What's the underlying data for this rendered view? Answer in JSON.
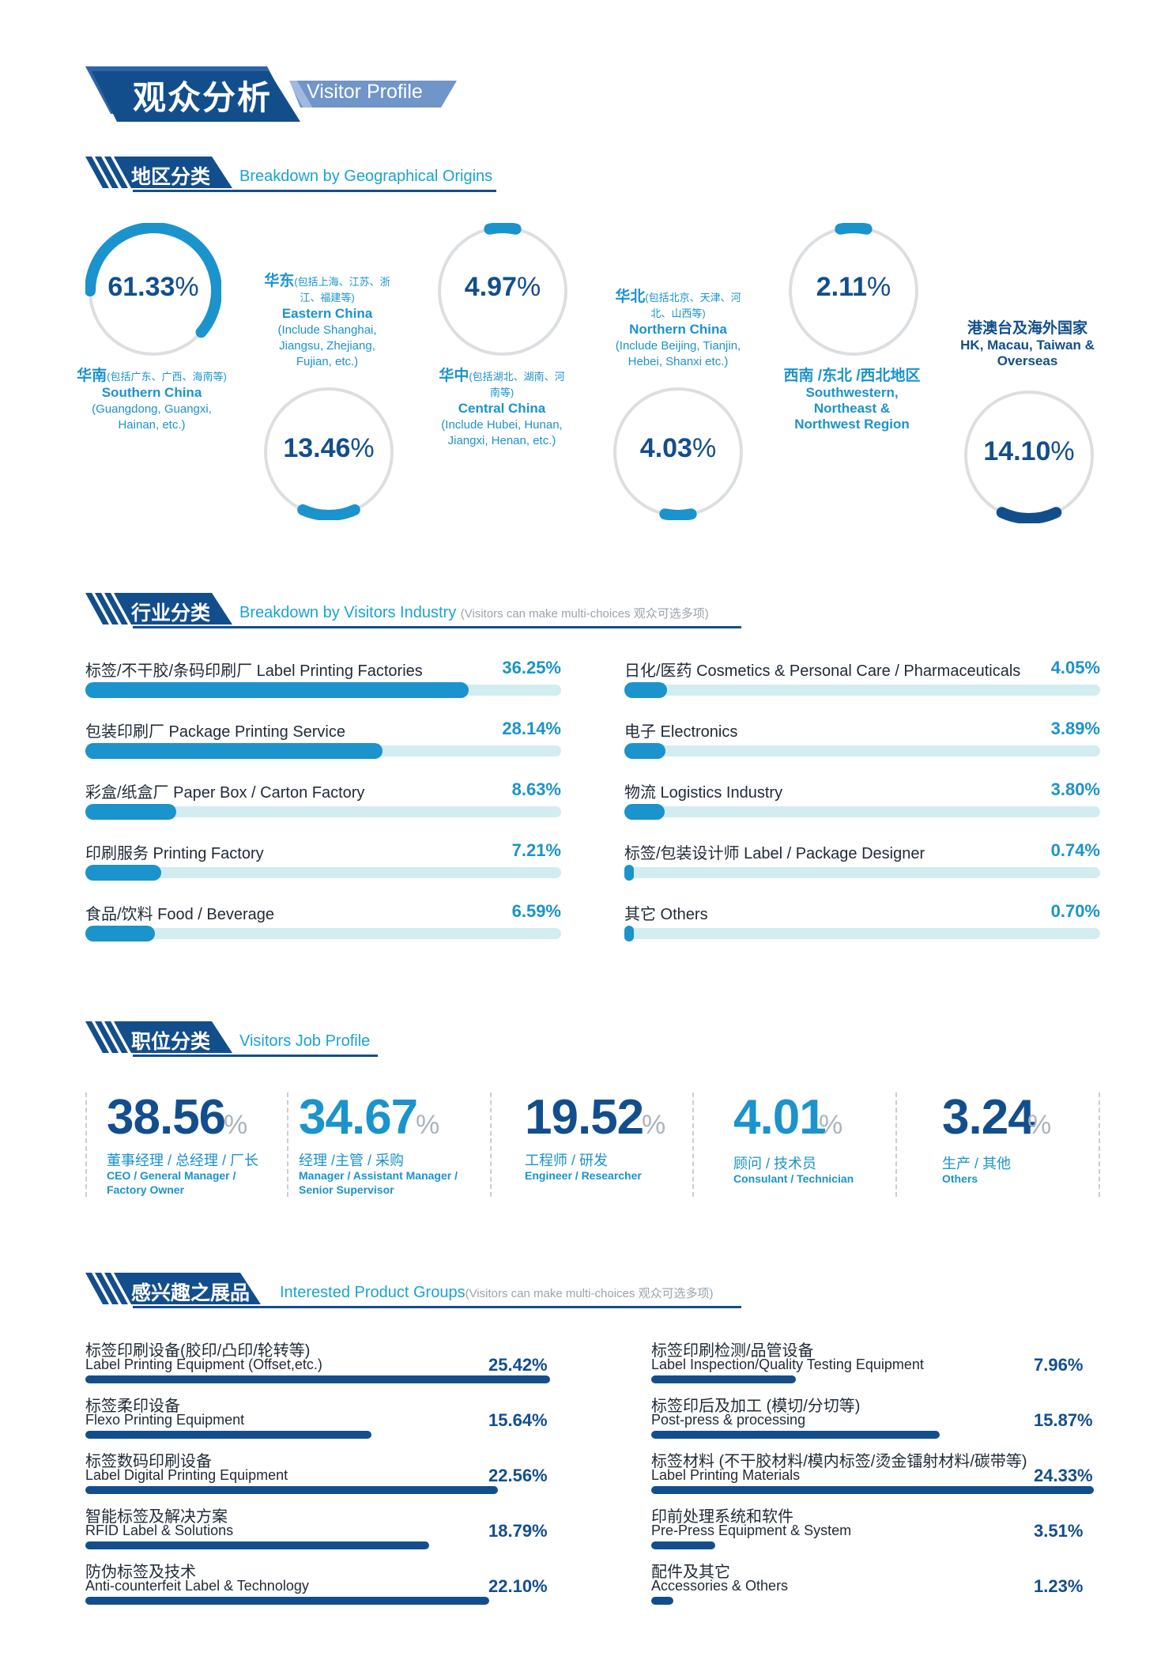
{
  "colors": {
    "navy": "#134e8c",
    "blue": "#1b93cc",
    "track": "#d3ecef",
    "ring": "#dcdfe2"
  },
  "header": {
    "title_zh": "观众分析",
    "title_en": "Visitor Profile"
  },
  "sections": {
    "geo": {
      "zh": "地区分类",
      "en": "Breakdown by Geographical Origins"
    },
    "industry": {
      "zh": "行业分类",
      "en": "Breakdown by Visitors Industry",
      "note": "(Visitors can make multi-choices 观众可选多项)"
    },
    "job": {
      "zh": "职位分类",
      "en": "Visitors Job Profile"
    },
    "product": {
      "zh": "感兴趣之展品",
      "en": "Interested Product Groups",
      "note": "(Visitors can make multi-choices 观众可选多项)"
    }
  },
  "chart_data": [
    {
      "type": "pie",
      "regions": [
        {
          "zh": "华南",
          "zh_note": "(包括广东、广西、海南等)",
          "en": "Southern China",
          "en_note": "(Guangdong, Guangxi, Hainan, etc.)",
          "value": 61.33,
          "value_label": "61.33"
        },
        {
          "zh": "华东",
          "zh_note": "(包括上海、江苏、浙江、福建等)",
          "en": "Eastern China",
          "en_note": "(Include Shanghai, Jiangsu, Zhejiang, Fujian, etc.)",
          "value": 13.46,
          "value_label": "13.46"
        },
        {
          "zh": "华中",
          "zh_note": "(包括湖北、湖南、河南等)",
          "en": "Central China",
          "en_note": "(Include Hubei, Hunan, Jiangxi, Henan, etc.)",
          "value": 4.97,
          "value_label": "4.97"
        },
        {
          "zh": "华北",
          "zh_note": "(包括北京、天津、河北、山西等)",
          "en": "Northern China",
          "en_note": "(Include Beijing, Tianjin, Hebei, Shanxi etc.)",
          "value": 4.03,
          "value_label": "4.03"
        },
        {
          "zh": "西南 /东北 /西北地区",
          "zh_note": "",
          "en": "Southwestern, Northeast & Northwest Region",
          "en_note": "",
          "value": 2.11,
          "value_label": "2.11"
        },
        {
          "zh": "港澳台及海外国家",
          "zh_note": "",
          "en": "HK, Macau, Taiwan & Overseas",
          "en_note": "",
          "value": 14.1,
          "value_label": "14.10"
        }
      ],
      "unit": "%"
    },
    {
      "type": "bar",
      "items": [
        {
          "label": "标签/不干胶/条码印刷厂 Label Printing Factories",
          "value": 36.25,
          "value_label": "36.25%"
        },
        {
          "label": "包装印刷厂 Package Printing Service",
          "value": 28.14,
          "value_label": "28.14%"
        },
        {
          "label": "彩盒/纸盒厂 Paper Box / Carton Factory",
          "value": 8.63,
          "value_label": "8.63%"
        },
        {
          "label": "印刷服务 Printing Factory",
          "value": 7.21,
          "value_label": "7.21%"
        },
        {
          "label": "食品/饮料 Food / Beverage",
          "value": 6.59,
          "value_label": "6.59%"
        },
        {
          "label": "日化/医药 Cosmetics & Personal Care / Pharmaceuticals",
          "value": 4.05,
          "value_label": "4.05%"
        },
        {
          "label": "电子 Electronics",
          "value": 3.89,
          "value_label": "3.89%"
        },
        {
          "label": "物流 Logistics Industry",
          "value": 3.8,
          "value_label": "3.80%"
        },
        {
          "label": "标签/包装设计师 Label / Package Designer",
          "value": 0.74,
          "value_label": "0.74%"
        },
        {
          "label": "其它 Others",
          "value": 0.7,
          "value_label": "0.70%"
        }
      ]
    },
    {
      "type": "table",
      "jobs": [
        {
          "value": "38.56",
          "unit": "%",
          "zh": "董事经理 / 总经理 / 厂长",
          "en": "CEO / General Manager / Factory Owner"
        },
        {
          "value": "34.67",
          "unit": "%",
          "zh": "经理 /主管 / 采购",
          "en": "Manager / Assistant Manager / Senior Supervisor"
        },
        {
          "value": "19.52",
          "unit": "%",
          "zh": "工程师 / 研发",
          "en": "Engineer / Researcher"
        },
        {
          "value": "4.01",
          "unit": "%",
          "zh": "顾问 / 技术员",
          "en": "Consulant / Technician"
        },
        {
          "value": "3.24",
          "unit": "%",
          "zh": "生产 / 其他",
          "en": "Others"
        }
      ]
    },
    {
      "type": "bar",
      "products": [
        {
          "zh": "标签印刷设备(胶印/凸印/轮转等)",
          "en": "Label Printing Equipment (Offset,etc.)",
          "value": 25.42,
          "value_label": "25.42%"
        },
        {
          "zh": "标签柔印设备",
          "en": "Flexo Printing Equipment",
          "value": 15.64,
          "value_label": "15.64%"
        },
        {
          "zh": "标签数码印刷设备",
          "en": "Label Digital Printing Equipment",
          "value": 22.56,
          "value_label": "22.56%"
        },
        {
          "zh": "智能标签及解决方案",
          "en": "RFID Label & Solutions",
          "value": 18.79,
          "value_label": "18.79%"
        },
        {
          "zh": "防伪标签及技术",
          "en": "Anti-counterfeit Label & Technology",
          "value": 22.1,
          "value_label": "22.10%"
        },
        {
          "zh": "标签印刷检测/品管设备",
          "en": "Label Inspection/Quality Testing Equipment",
          "value": 7.96,
          "value_label": "7.96%"
        },
        {
          "zh": "标签印后及加工 (模切/分切等)",
          "en": "Post-press & processing",
          "value": 15.87,
          "value_label": "15.87%"
        },
        {
          "zh": "标签材料 (不干胶材料/模内标签/烫金镭射材料/碳带等)",
          "en": "Label Printing Materials",
          "value": 24.33,
          "value_label": "24.33%"
        },
        {
          "zh": "印前处理系统和软件",
          "en": "Pre-Press Equipment & System",
          "value": 3.51,
          "value_label": "3.51%"
        },
        {
          "zh": "配件及其它",
          "en": "Accessories & Others",
          "value": 1.23,
          "value_label": "1.23%"
        }
      ]
    }
  ]
}
